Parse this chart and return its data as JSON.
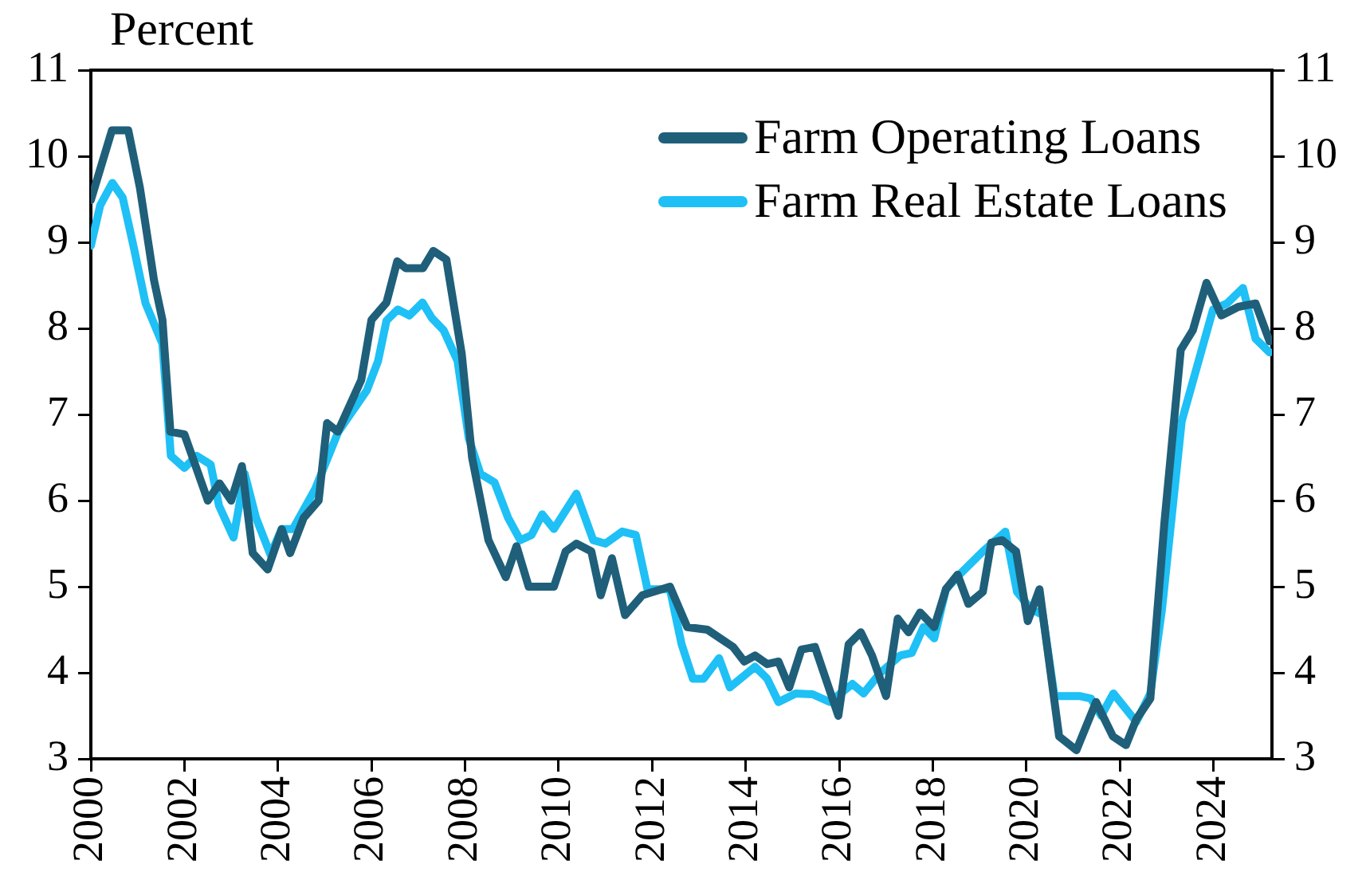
{
  "chart_data": {
    "type": "line",
    "ylabel": "Percent",
    "xlim": [
      2000,
      2025.25
    ],
    "xticks": [
      2000,
      2002,
      2004,
      2006,
      2008,
      2010,
      2012,
      2014,
      2016,
      2018,
      2020,
      2022,
      2024
    ],
    "ylim": [
      3,
      11
    ],
    "yticks": [
      3,
      4,
      5,
      6,
      7,
      8,
      9,
      10,
      11
    ],
    "y2lim": [
      3,
      11
    ],
    "y2ticks": [
      3,
      4,
      5,
      6,
      7,
      8,
      9,
      10,
      11
    ],
    "grid": false,
    "legend": "top right",
    "marker": "none",
    "line_style": "solid",
    "series": [
      {
        "name": "Farm Operating Loans",
        "color": "#1f5f7a",
        "x": [
          2000.0,
          2000.45,
          2000.8,
          2001.05,
          2001.35,
          2001.53,
          2001.7,
          2002.0,
          2002.5,
          2002.75,
          2003.0,
          2003.23,
          2003.46,
          2003.78,
          2004.08,
          2004.26,
          2004.55,
          2004.87,
          2005.05,
          2005.28,
          2005.78,
          2006.0,
          2006.32,
          2006.55,
          2006.73,
          2007.1,
          2007.32,
          2007.6,
          2007.93,
          2008.15,
          2008.5,
          2008.87,
          2009.1,
          2009.36,
          2009.9,
          2010.15,
          2010.38,
          2010.7,
          2010.9,
          2011.14,
          2011.42,
          2011.79,
          2012.38,
          2012.75,
          2013.18,
          2013.73,
          2013.97,
          2014.2,
          2014.46,
          2014.7,
          2014.93,
          2015.19,
          2015.48,
          2015.98,
          2016.2,
          2016.46,
          2016.7,
          2017.0,
          2017.25,
          2017.48,
          2017.73,
          2018.03,
          2018.28,
          2018.53,
          2018.76,
          2019.07,
          2019.25,
          2019.48,
          2019.78,
          2020.03,
          2020.28,
          2020.7,
          2021.07,
          2021.49,
          2021.85,
          2022.13,
          2022.35,
          2022.65,
          2022.95,
          2023.3,
          2023.56,
          2023.85,
          2024.17,
          2024.53,
          2024.9,
          2025.2
        ],
        "values": [
          9.49,
          10.3,
          10.3,
          9.63,
          8.56,
          8.1,
          6.8,
          6.77,
          6.0,
          6.2,
          6.0,
          6.4,
          5.39,
          5.2,
          5.67,
          5.39,
          5.8,
          6.0,
          6.9,
          6.8,
          7.4,
          8.1,
          8.3,
          8.78,
          8.7,
          8.7,
          8.9,
          8.8,
          7.7,
          6.5,
          5.54,
          5.11,
          5.47,
          5.0,
          5.0,
          5.41,
          5.5,
          5.41,
          4.9,
          5.33,
          4.67,
          4.9,
          5.0,
          4.53,
          4.5,
          4.3,
          4.13,
          4.2,
          4.1,
          4.13,
          3.83,
          4.27,
          4.3,
          3.5,
          4.33,
          4.47,
          4.2,
          3.73,
          4.63,
          4.47,
          4.7,
          4.53,
          4.97,
          5.14,
          4.8,
          4.94,
          5.51,
          5.54,
          5.41,
          4.6,
          4.97,
          3.26,
          3.1,
          3.66,
          3.26,
          3.16,
          3.46,
          3.7,
          5.74,
          7.75,
          7.98,
          8.53,
          8.15,
          8.25,
          8.29,
          7.85
        ]
      },
      {
        "name": "Farm Real Estate Loans",
        "color": "#1ec0f5",
        "x": [
          2000.0,
          2000.2,
          2000.46,
          2000.68,
          2000.91,
          2001.17,
          2001.53,
          2001.71,
          2002.0,
          2002.26,
          2002.56,
          2002.74,
          2003.05,
          2003.29,
          2003.53,
          2003.84,
          2004.08,
          2004.32,
          2004.8,
          2005.29,
          2005.9,
          2006.14,
          2006.32,
          2006.56,
          2006.81,
          2007.09,
          2007.29,
          2007.54,
          2007.84,
          2008.08,
          2008.33,
          2008.63,
          2008.92,
          2009.18,
          2009.42,
          2009.65,
          2009.9,
          2010.38,
          2010.74,
          2011.0,
          2011.36,
          2011.65,
          2011.9,
          2012.38,
          2012.63,
          2012.87,
          2013.1,
          2013.43,
          2013.66,
          2014.2,
          2014.46,
          2014.7,
          2015.07,
          2015.43,
          2015.8,
          2016.28,
          2016.52,
          2016.88,
          2017.3,
          2017.55,
          2017.8,
          2018.03,
          2018.28,
          2018.57,
          2019.07,
          2019.55,
          2019.8,
          2020.1,
          2020.35,
          2020.6,
          2021.13,
          2021.38,
          2021.6,
          2021.86,
          2022.35,
          2022.65,
          2022.9,
          2023.32,
          2023.68,
          2023.99,
          2024.29,
          2024.63,
          2024.9,
          2025.2
        ],
        "values": [
          8.96,
          9.43,
          9.69,
          9.52,
          8.96,
          8.29,
          7.82,
          6.52,
          6.38,
          6.52,
          6.42,
          5.94,
          5.57,
          6.31,
          5.8,
          5.37,
          5.67,
          5.67,
          6.14,
          6.8,
          7.28,
          7.62,
          8.09,
          8.22,
          8.15,
          8.3,
          8.12,
          7.98,
          7.62,
          6.72,
          6.31,
          6.21,
          5.8,
          5.54,
          5.6,
          5.84,
          5.67,
          6.08,
          5.54,
          5.5,
          5.64,
          5.6,
          4.97,
          4.97,
          4.33,
          3.93,
          3.93,
          4.17,
          3.83,
          4.07,
          3.93,
          3.66,
          3.76,
          3.75,
          3.66,
          3.87,
          3.76,
          4.0,
          4.2,
          4.23,
          4.53,
          4.4,
          4.97,
          5.14,
          5.41,
          5.64,
          4.94,
          4.74,
          4.67,
          3.73,
          3.73,
          3.7,
          3.5,
          3.76,
          3.43,
          3.76,
          4.74,
          6.92,
          7.62,
          8.22,
          8.29,
          8.47,
          7.88,
          7.72
        ]
      }
    ]
  }
}
